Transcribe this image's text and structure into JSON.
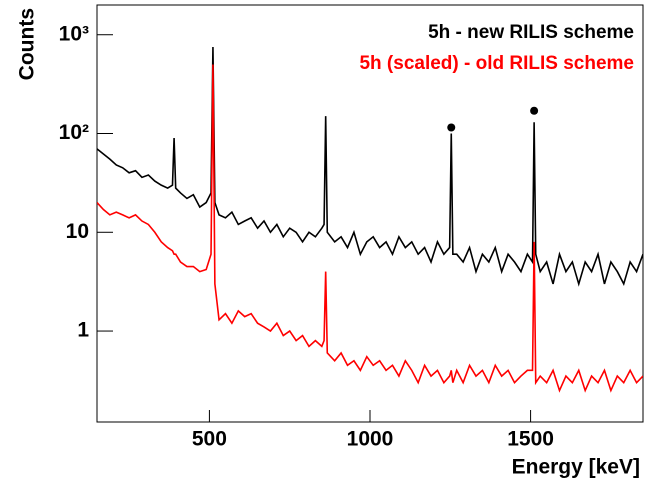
{
  "chart_data": {
    "type": "line",
    "x_label": "Energy [keV]",
    "y_label": "Counts",
    "log_y": true,
    "xlim": [
      150,
      1850
    ],
    "xticks": [
      500,
      1000,
      1500
    ],
    "ylim": [
      0.12,
      2000
    ],
    "yticks": [
      {
        "value": 1000,
        "label": "10³"
      },
      {
        "value": 100,
        "label": "10²"
      },
      10,
      1
    ],
    "x": [
      150,
      170,
      190,
      210,
      230,
      250,
      270,
      290,
      310,
      330,
      350,
      370,
      385,
      390,
      395,
      410,
      430,
      450,
      470,
      490,
      505,
      511,
      517,
      530,
      550,
      570,
      590,
      610,
      630,
      650,
      670,
      690,
      710,
      730,
      750,
      770,
      790,
      810,
      830,
      850,
      857,
      862,
      867,
      890,
      910,
      930,
      950,
      970,
      990,
      1010,
      1030,
      1050,
      1070,
      1090,
      1110,
      1130,
      1150,
      1170,
      1190,
      1210,
      1230,
      1248,
      1253,
      1258,
      1270,
      1290,
      1310,
      1330,
      1350,
      1370,
      1390,
      1410,
      1430,
      1450,
      1470,
      1490,
      1506,
      1511,
      1516,
      1530,
      1550,
      1570,
      1590,
      1610,
      1630,
      1650,
      1670,
      1690,
      1710,
      1730,
      1750,
      1770,
      1790,
      1810,
      1830,
      1850
    ],
    "series": [
      {
        "name": "5h - new RILIS scheme",
        "color": "#000000",
        "values": [
          70,
          62,
          55,
          48,
          45,
          40,
          42,
          36,
          38,
          33,
          30,
          28,
          30,
          90,
          28,
          25,
          22,
          24,
          18,
          20,
          25,
          750,
          20,
          15,
          14,
          16,
          12,
          13,
          14,
          11,
          13,
          10,
          12,
          9,
          11,
          10,
          8,
          10,
          9,
          11,
          12,
          150,
          10,
          8,
          9,
          7,
          10,
          6,
          8,
          9,
          7,
          8,
          6,
          9,
          7,
          8,
          6,
          7,
          5,
          8,
          6,
          7,
          100,
          6,
          6,
          5,
          7,
          4,
          6,
          5,
          7,
          4,
          6,
          5,
          4,
          6,
          5,
          130,
          6,
          4,
          5,
          3,
          6,
          4,
          5,
          3,
          5,
          4,
          6,
          3,
          5,
          4,
          3,
          5,
          4,
          6
        ]
      },
      {
        "name": "5h (scaled) - old RILIS scheme",
        "color": "#ff0000",
        "values": [
          20,
          17,
          15,
          16,
          15,
          14,
          15,
          13,
          12,
          10,
          8,
          7,
          6.5,
          6,
          6,
          5,
          4.5,
          4.5,
          4,
          4.2,
          6,
          500,
          3,
          1.3,
          1.5,
          1.2,
          1.6,
          1.4,
          1.5,
          1.2,
          1.1,
          1.0,
          1.2,
          0.9,
          1.0,
          0.8,
          0.9,
          0.7,
          0.8,
          0.7,
          0.8,
          4,
          0.6,
          0.5,
          0.6,
          0.45,
          0.5,
          0.4,
          0.55,
          0.45,
          0.5,
          0.4,
          0.45,
          0.35,
          0.5,
          0.4,
          0.3,
          0.45,
          0.35,
          0.4,
          0.3,
          0.35,
          0.4,
          0.3,
          0.4,
          0.3,
          0.45,
          0.35,
          0.4,
          0.3,
          0.45,
          0.35,
          0.4,
          0.3,
          0.35,
          0.4,
          0.4,
          8,
          0.3,
          0.35,
          0.3,
          0.4,
          0.25,
          0.35,
          0.3,
          0.4,
          0.25,
          0.35,
          0.3,
          0.4,
          0.25,
          0.35,
          0.3,
          0.4,
          0.3,
          0.35
        ]
      }
    ],
    "markers": [
      {
        "x": 1253,
        "y": 115
      },
      {
        "x": 1511,
        "y": 170
      }
    ]
  }
}
